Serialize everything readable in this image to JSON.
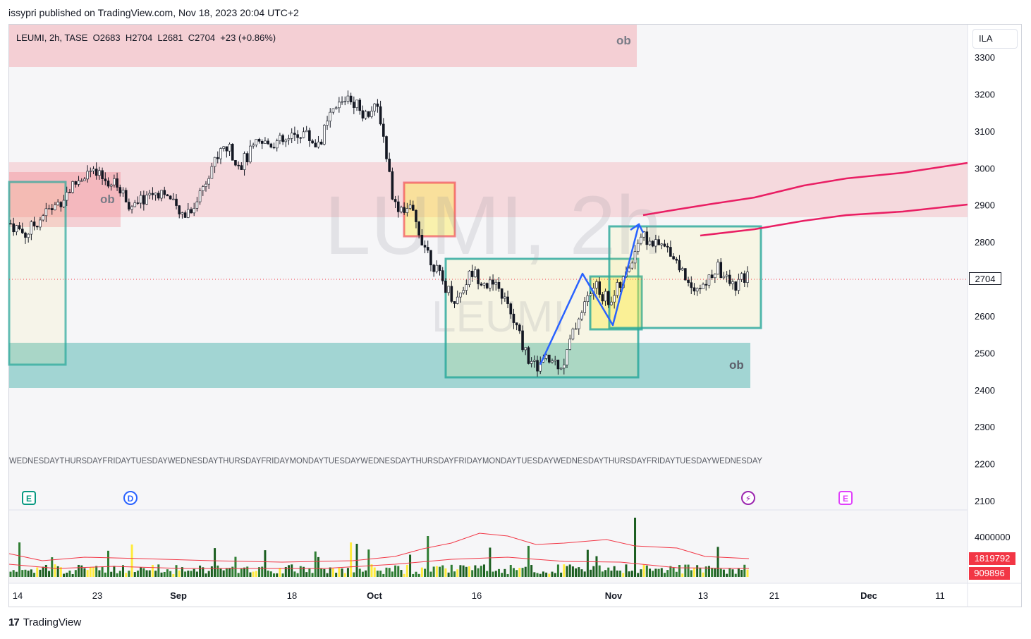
{
  "header": {
    "publisher_line": "issypri published on TradingView.com, Nov 18, 2023 20:04 UTC+2"
  },
  "legend": {
    "symbol": "LEUMI",
    "interval": "2h",
    "exchange": "TASE",
    "ohlc_text": "LEUMI, 2h, TASE  O2683  H2704  L2681  C2704  +23 (+0.86%)"
  },
  "watermark": {
    "main": "LUMI, 2h",
    "sub": "LEUMI"
  },
  "currency_button": "ILA",
  "price_tags": {
    "last_price": "2704",
    "vol_1": "1819792",
    "vol_2": "909896"
  },
  "footer": {
    "brand": "TradingView"
  },
  "events": [
    {
      "letter": "E",
      "kind": "earnings"
    },
    {
      "letter": "D",
      "kind": "dividend"
    },
    {
      "letter": "⚡",
      "kind": "news"
    },
    {
      "letter": "E",
      "kind": "earnings"
    }
  ],
  "zone_labels": [
    "ob",
    "ob",
    "ob"
  ],
  "colors": {
    "up": "#131722",
    "down": "#131722",
    "supply": "#f23645",
    "demand": "#26a69a",
    "highlight": "#ffeb3b",
    "trend": "#2962ff",
    "ma": "#e91e63",
    "volume": "#1b5e20",
    "volume_ma": "#f44336"
  },
  "chart_data": {
    "type": "candlestick",
    "title": "LEUMI, 2h, TASE",
    "xlabel": "",
    "ylabel": "",
    "ylim": [
      2050,
      3350
    ],
    "y_ticks": [
      3300,
      3200,
      3100,
      3000,
      2900,
      2800,
      2700,
      2600,
      2500,
      2400,
      2300,
      2200,
      2100
    ],
    "x_ticks": [
      "14",
      "23",
      "Sep",
      "18",
      "Oct",
      "16",
      "Nov",
      "13",
      "21",
      "Dec",
      "11"
    ],
    "last": {
      "open": 2683,
      "high": 2704,
      "low": 2681,
      "close": 2704,
      "change": 23,
      "change_pct": 0.86
    },
    "close_path": [
      [
        "Aug 14",
        2850
      ],
      [
        "Aug 16",
        2820
      ],
      [
        "Aug 18",
        2870
      ],
      [
        "Aug 21",
        2900
      ],
      [
        "Aug 24",
        2950
      ],
      [
        "Aug 28",
        2990
      ],
      [
        "Aug 30",
        2970
      ],
      [
        "Sep 1",
        2950
      ],
      [
        "Sep 4",
        2890
      ],
      [
        "Sep 6",
        2930
      ],
      [
        "Sep 8",
        2940
      ],
      [
        "Sep 10",
        2870
      ],
      [
        "Sep 12",
        2900
      ],
      [
        "Sep 13",
        3000
      ],
      [
        "Sep 14",
        3060
      ],
      [
        "Sep 15",
        3010
      ],
      [
        "Sep 17",
        3060
      ],
      [
        "Sep 19",
        3070
      ],
      [
        "Sep 21",
        3070
      ],
      [
        "Sep 24",
        3100
      ],
      [
        "Sep 26",
        3060
      ],
      [
        "Sep 28",
        3150
      ],
      [
        "Oct 1",
        3200
      ],
      [
        "Oct 2",
        3150
      ],
      [
        "Oct 4",
        3160
      ],
      [
        "Oct 5",
        2900
      ],
      [
        "Oct 9",
        2890
      ],
      [
        "Oct 11",
        2790
      ],
      [
        "Oct 12",
        2700
      ],
      [
        "Oct 13",
        2640
      ],
      [
        "Oct 15",
        2720
      ],
      [
        "Oct 17",
        2690
      ],
      [
        "Oct 19",
        2660
      ],
      [
        "Oct 20",
        2560
      ],
      [
        "Oct 23",
        2460
      ],
      [
        "Oct 25",
        2480
      ],
      [
        "Oct 27",
        2470
      ],
      [
        "Oct 29",
        2600
      ],
      [
        "Oct 31",
        2680
      ],
      [
        "Nov 2",
        2640
      ],
      [
        "Nov 3",
        2700
      ],
      [
        "Nov 5",
        2820
      ],
      [
        "Nov 8",
        2790
      ],
      [
        "Nov 10",
        2780
      ],
      [
        "Nov 12",
        2700
      ],
      [
        "Nov 13",
        2670
      ],
      [
        "Nov 15",
        2730
      ],
      [
        "Nov 16",
        2680
      ],
      [
        "Nov 17",
        2704
      ]
    ],
    "zones": [
      {
        "name": "supply-ob-top",
        "y_from": 3240,
        "y_to": 3350,
        "label": "ob"
      },
      {
        "name": "supply-ob-mid",
        "y_from": 2860,
        "y_to": 3020,
        "label": "ob"
      },
      {
        "name": "demand-ob-bottom",
        "y_from": 2410,
        "y_to": 2530,
        "label": "ob"
      }
    ],
    "volume_ticks": [
      "4000000"
    ],
    "volume_ma_values": [
      1819792,
      909896
    ]
  }
}
